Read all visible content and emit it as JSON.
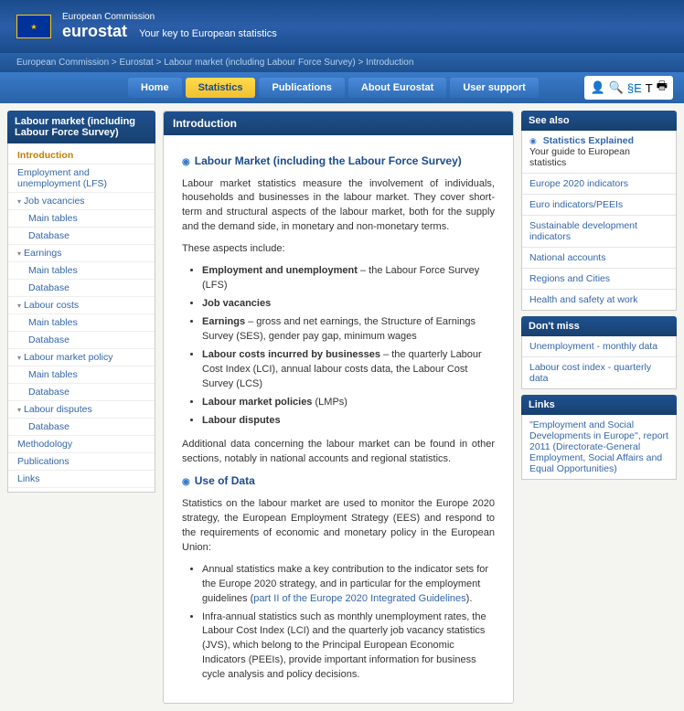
{
  "header": {
    "ec_label": "European Commission",
    "brand": "eurostat",
    "tagline": "Your key to European statistics"
  },
  "breadcrumb": "European Commission > Eurostat > Labour market (including Labour Force Survey) > Introduction",
  "nav": {
    "home": "Home",
    "statistics": "Statistics",
    "publications": "Publications",
    "about": "About Eurostat",
    "support": "User support"
  },
  "sidebar": {
    "title": "Labour market (including Labour Force Survey)",
    "items": [
      {
        "label": "Introduction",
        "active": true
      },
      {
        "label": "Employment and unemployment (LFS)"
      },
      {
        "label": "Job vacancies",
        "exp": true
      },
      {
        "label": "Main tables",
        "sub": true
      },
      {
        "label": "Database",
        "sub": true
      },
      {
        "label": "Earnings",
        "exp": true
      },
      {
        "label": "Main tables",
        "sub": true
      },
      {
        "label": "Database",
        "sub": true
      },
      {
        "label": "Labour costs",
        "exp": true
      },
      {
        "label": "Main tables",
        "sub": true
      },
      {
        "label": "Database",
        "sub": true
      },
      {
        "label": "Labour market policy",
        "exp": true
      },
      {
        "label": "Main tables",
        "sub": true
      },
      {
        "label": "Database",
        "sub": true
      },
      {
        "label": "Labour disputes",
        "exp": true
      },
      {
        "label": "Database",
        "sub": true
      },
      {
        "label": "Methodology"
      },
      {
        "label": "Publications"
      },
      {
        "label": "Links"
      }
    ]
  },
  "main": {
    "header": "Introduction",
    "s1_title": "Labour Market (including the Labour Force Survey)",
    "p1": "Labour market statistics measure the involvement of individuals, households and businesses in the labour market. They cover short-term and structural aspects of the labour market, both for the supply and the demand side, in monetary and non-monetary terms.",
    "p2": "These aspects include:",
    "li1a": "Employment and unemployment",
    "li1b": " – the Labour Force Survey (LFS)",
    "li2": "Job vacancies",
    "li3a": "Earnings",
    "li3b": " – gross and net earnings, the Structure of Earnings Survey (SES), gender pay gap, minimum wages",
    "li4a": "Labour costs incurred by businesses",
    "li4b": " – the quarterly Labour Cost Index (LCI), annual labour costs data, the Labour Cost Survey (LCS)",
    "li5a": "Labour market policies",
    "li5b": " (LMPs)",
    "li6": "Labour disputes",
    "p3": "Additional data concerning the labour market can be found in other sections, notably in national accounts and regional statistics.",
    "s2_title": "Use of Data",
    "p4": "Statistics on the labour market are used to monitor the Europe 2020 strategy, the European Employment Strategy (EES) and respond to the requirements of economic and monetary policy in the European Union:",
    "li7a": "Annual statistics make a key contribution to the indicator sets for the Europe 2020 strategy, and in particular for the employment guidelines (",
    "li7link": "part II of the Europe 2020 Integrated Guidelines",
    "li7b": ").",
    "li8": "Infra-annual statistics such as monthly unemployment rates, the Labour Cost Index (LCI) and the quarterly job vacancy statistics (JVS), which belong to the Principal European Economic Indicators (PEEIs), provide important information for business cycle analysis and policy decisions."
  },
  "right": {
    "see_also": "See also",
    "se_title": "Statistics Explained",
    "se_sub": "Your guide to European statistics",
    "links1": [
      "Europe 2020 indicators",
      "Euro indicators/PEEIs",
      "Sustainable development indicators",
      "National accounts",
      "Regions and Cities",
      "Health and safety at work"
    ],
    "dont_miss": "Don't miss",
    "links2": [
      "Unemployment - monthly data",
      "Labour cost index - quarterly data"
    ],
    "links_hdr": "Links",
    "links3": "\"Employment and Social Developments in Europe\", report 2011 (Directorate-General Employment, Social Affairs and Equal Opportunities)"
  },
  "colors": {
    "primary": "#1f5190",
    "accent": "#f0c030",
    "link": "#3366aa"
  }
}
